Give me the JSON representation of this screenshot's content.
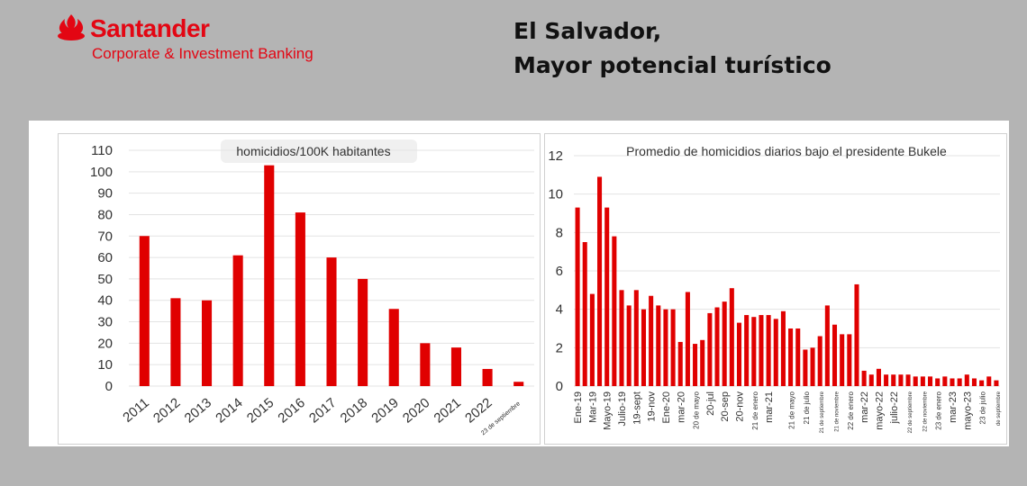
{
  "header": {
    "brand_name": "Santander",
    "brand_subtitle": "Corporate & Investment Banking",
    "title_line1": "El Salvador,",
    "title_line2": "Mayor potencial turístico"
  },
  "colors": {
    "bar": "#e00000",
    "brand": "#e30613",
    "background": "#b4b4b4"
  },
  "chart_data": [
    {
      "type": "bar",
      "title": "homicidios/100K habitantes",
      "categories": [
        "2011",
        "2012",
        "2013",
        "2014",
        "2015",
        "2016",
        "2017",
        "2018",
        "2019",
        "2020",
        "2021",
        "2022",
        "23 de septiembre"
      ],
      "values": [
        70,
        41,
        40,
        61,
        103,
        81,
        60,
        50,
        36,
        20,
        18,
        8,
        2
      ],
      "ylim": [
        0,
        110
      ],
      "yticks": [
        0,
        10,
        20,
        30,
        40,
        50,
        60,
        70,
        80,
        90,
        100,
        110
      ],
      "grid": true,
      "legend": "none"
    },
    {
      "type": "bar",
      "title": "Promedio de homicidios diarios bajo el presidente Bukele",
      "values": [
        9.3,
        7.5,
        4.8,
        10.9,
        9.3,
        7.8,
        5.0,
        4.2,
        5.0,
        4.0,
        4.7,
        4.2,
        4.0,
        4.0,
        2.3,
        4.9,
        2.2,
        2.4,
        3.8,
        4.1,
        4.4,
        5.1,
        3.3,
        3.7,
        3.6,
        3.7,
        3.7,
        3.5,
        3.9,
        3.0,
        3.0,
        1.9,
        2.0,
        2.6,
        4.2,
        3.2,
        2.7,
        2.7,
        5.3,
        0.8,
        0.6,
        0.9,
        0.6,
        0.6,
        0.6,
        0.6,
        0.5,
        0.5,
        0.5,
        0.4,
        0.5,
        0.4,
        0.4,
        0.6,
        0.4,
        0.3,
        0.5,
        0.3
      ],
      "tick_labels": [
        "Ene-19",
        "Mar-19",
        "Mayo-19",
        "Julio-19",
        "19-sept",
        "19-nov",
        "Ene-20",
        "mar-20",
        "20 de mayo",
        "20-jul",
        "20-sep",
        "20-nov",
        "21 de enero",
        "mar-21",
        "21 de mayo",
        "21 de julio",
        "21 de septiembre",
        "21 de noviembre",
        "22 de enero",
        "mar-22",
        "mayo-22",
        "julio-22",
        "22 de septiembre",
        "22 de noviembre",
        "23 de enero",
        "mar-23",
        "mayo-23",
        "23 de julio",
        "de septiembre"
      ],
      "ylim": [
        0,
        12
      ],
      "yticks": [
        0,
        2,
        4,
        6,
        8,
        10,
        12
      ],
      "grid": true,
      "legend": "none"
    }
  ]
}
